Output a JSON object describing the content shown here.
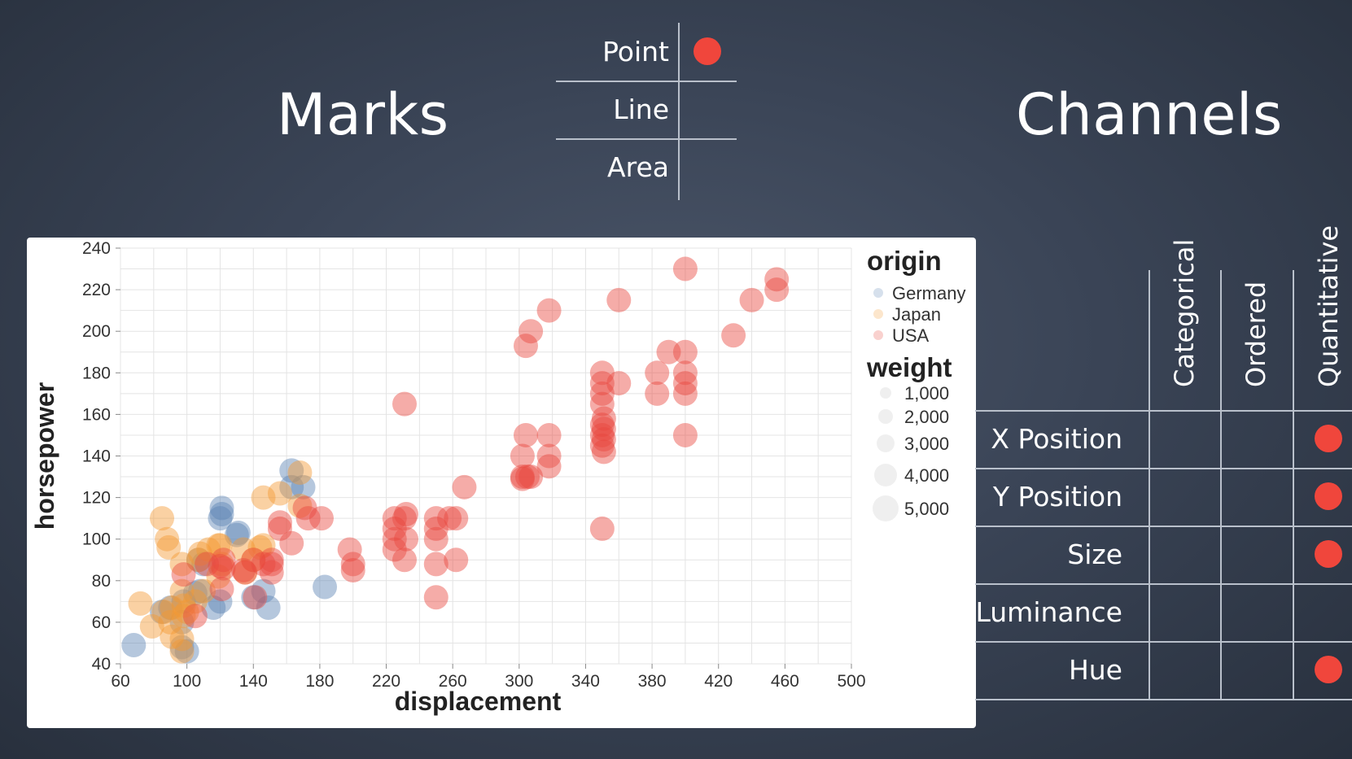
{
  "slide": {
    "marks_title": "Marks",
    "channels_title": "Channels"
  },
  "marks_table": {
    "rows": [
      {
        "label": "Point",
        "checked": true
      },
      {
        "label": "Line",
        "checked": false
      },
      {
        "label": "Area",
        "checked": false
      }
    ],
    "dot_color": "#f0463c"
  },
  "channels_table": {
    "columns": [
      "Categorical",
      "Ordered",
      "Quantitative"
    ],
    "rows": [
      {
        "label": "X Position",
        "checked": [
          false,
          false,
          true
        ]
      },
      {
        "label": "Y Position",
        "checked": [
          false,
          false,
          true
        ]
      },
      {
        "label": "Size",
        "checked": [
          false,
          false,
          true
        ]
      },
      {
        "label": "Luminance",
        "checked": [
          false,
          false,
          false
        ]
      },
      {
        "label": "Hue",
        "checked": [
          false,
          false,
          true
        ]
      }
    ]
  },
  "chart_data": {
    "type": "scatter",
    "xlabel": "displacement",
    "ylabel": "horsepower",
    "xlim": [
      60,
      500
    ],
    "ylim": [
      40,
      240
    ],
    "xticks": [
      60,
      100,
      140,
      180,
      220,
      260,
      300,
      340,
      380,
      420,
      460,
      500
    ],
    "yticks": [
      40,
      60,
      80,
      100,
      120,
      140,
      160,
      180,
      200,
      220,
      240
    ],
    "grid": true,
    "legend": {
      "placement": "right",
      "color_title": "origin",
      "color_entries": [
        "Germany",
        "Japan",
        "USA"
      ],
      "size_title": "weight",
      "size_entries": [
        "1,000",
        "2,000",
        "3,000",
        "4,000",
        "5,000"
      ]
    },
    "colors": {
      "Germany": "#5b82b4",
      "Japan": "#f59a32",
      "USA": "#e8483d"
    },
    "series": [
      {
        "name": "Germany",
        "points": [
          [
            68,
            49
          ],
          [
            85,
            65
          ],
          [
            90,
            67
          ],
          [
            97,
            48
          ],
          [
            97,
            60
          ],
          [
            98,
            70
          ],
          [
            100,
            46
          ],
          [
            105,
            74
          ],
          [
            107,
            90
          ],
          [
            108,
            75
          ],
          [
            110,
            88
          ],
          [
            116,
            67
          ],
          [
            120,
            70
          ],
          [
            120,
            110
          ],
          [
            121,
            115
          ],
          [
            121,
            112
          ],
          [
            130,
            102
          ],
          [
            131,
            103
          ],
          [
            140,
            72
          ],
          [
            146,
            75
          ],
          [
            149,
            67
          ],
          [
            163,
            133
          ],
          [
            163,
            125
          ],
          [
            170,
            125
          ],
          [
            183,
            77
          ]
        ]
      },
      {
        "name": "Japan",
        "points": [
          [
            72,
            69
          ],
          [
            79,
            58
          ],
          [
            85,
            110
          ],
          [
            86,
            65
          ],
          [
            88,
            100
          ],
          [
            89,
            96
          ],
          [
            90,
            60
          ],
          [
            91,
            67
          ],
          [
            91,
            53
          ],
          [
            97,
            46
          ],
          [
            97,
            75
          ],
          [
            97,
            88
          ],
          [
            97,
            52
          ],
          [
            98,
            63
          ],
          [
            98,
            68
          ],
          [
            100,
            65
          ],
          [
            105,
            70
          ],
          [
            107,
            90
          ],
          [
            108,
            93
          ],
          [
            110,
            75
          ],
          [
            113,
            95
          ],
          [
            119,
            97
          ],
          [
            119,
            82
          ],
          [
            120,
            97
          ],
          [
            121,
            88
          ],
          [
            134,
            95
          ],
          [
            135,
            84
          ],
          [
            140,
            90
          ],
          [
            144,
            96
          ],
          [
            146,
            97
          ],
          [
            146,
            120
          ],
          [
            156,
            122
          ],
          [
            168,
            132
          ],
          [
            168,
            116
          ]
        ]
      },
      {
        "name": "USA",
        "points": [
          [
            98,
            83
          ],
          [
            105,
            63
          ],
          [
            112,
            88
          ],
          [
            120,
            87
          ],
          [
            121,
            76
          ],
          [
            122,
            86
          ],
          [
            122,
            90
          ],
          [
            134,
            85
          ],
          [
            135,
            84
          ],
          [
            140,
            90
          ],
          [
            141,
            72
          ],
          [
            146,
            88
          ],
          [
            151,
            88
          ],
          [
            151,
            90
          ],
          [
            151,
            84
          ],
          [
            156,
            105
          ],
          [
            156,
            108
          ],
          [
            163,
            98
          ],
          [
            171,
            115
          ],
          [
            173,
            110
          ],
          [
            181,
            110
          ],
          [
            198,
            95
          ],
          [
            200,
            85
          ],
          [
            200,
            88
          ],
          [
            225,
            95
          ],
          [
            225,
            100
          ],
          [
            225,
            105
          ],
          [
            225,
            110
          ],
          [
            231,
            110
          ],
          [
            231,
            90
          ],
          [
            232,
            100
          ],
          [
            232,
            112
          ],
          [
            250,
            100
          ],
          [
            250,
            88
          ],
          [
            250,
            72
          ],
          [
            250,
            105
          ],
          [
            250,
            110
          ],
          [
            258,
            110
          ],
          [
            262,
            110
          ],
          [
            262,
            90
          ],
          [
            267,
            125
          ],
          [
            302,
            140
          ],
          [
            302,
            129
          ],
          [
            302,
            130
          ],
          [
            304,
            150
          ],
          [
            305,
            130
          ],
          [
            307,
            130
          ],
          [
            318,
            150
          ],
          [
            318,
            140
          ],
          [
            318,
            135
          ],
          [
            350,
            145
          ],
          [
            350,
            150
          ],
          [
            350,
            155
          ],
          [
            350,
            165
          ],
          [
            350,
            170
          ],
          [
            350,
            175
          ],
          [
            350,
            180
          ],
          [
            350,
            105
          ],
          [
            351,
            153
          ],
          [
            351,
            148
          ],
          [
            351,
            142
          ],
          [
            351,
            158
          ],
          [
            360,
            175
          ],
          [
            360,
            215
          ],
          [
            383,
            170
          ],
          [
            383,
            180
          ],
          [
            390,
            190
          ],
          [
            400,
            150
          ],
          [
            400,
            170
          ],
          [
            400,
            175
          ],
          [
            400,
            180
          ],
          [
            400,
            190
          ],
          [
            400,
            230
          ],
          [
            429,
            198
          ],
          [
            440,
            215
          ],
          [
            455,
            225
          ],
          [
            455,
            220
          ],
          [
            304,
            193
          ],
          [
            307,
            200
          ],
          [
            318,
            210
          ],
          [
            231,
            165
          ]
        ]
      }
    ]
  }
}
